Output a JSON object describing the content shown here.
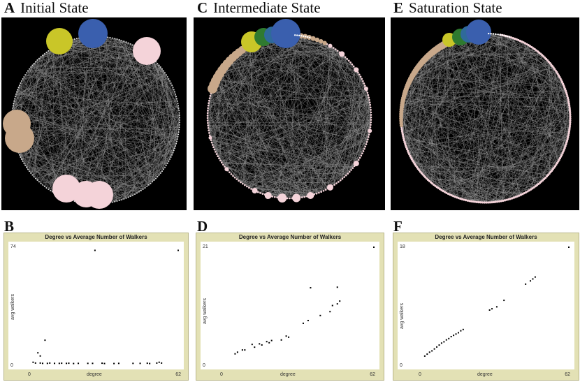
{
  "panels": [
    {
      "letter": "A",
      "title": "Initial State"
    },
    {
      "letter": "C",
      "title": "Intermediate State"
    },
    {
      "letter": "E",
      "title": "Saturation State"
    }
  ],
  "plot_letters": [
    "B",
    "D",
    "F"
  ],
  "colors": {
    "blue": "#3a5fae",
    "yellow": "#c9c628",
    "green": "#2f7a2f",
    "tan": "#c8a88a",
    "pink": "#f4d3d9",
    "edge": "#9a9a9a"
  },
  "chart_data": [
    {
      "type": "scatter",
      "title": "Degree vs Average Number of Walkers",
      "xlabel": "degree",
      "ylabel": "avg walkers",
      "xlim": [
        0,
        62
      ],
      "ylim": [
        0,
        74
      ],
      "xticks": [
        "0",
        "62"
      ],
      "yticks": [
        "0",
        "74"
      ],
      "points": [
        [
          27,
          72
        ],
        [
          62,
          72
        ],
        [
          1,
          1
        ],
        [
          3,
          7
        ],
        [
          4,
          5
        ],
        [
          6,
          15
        ],
        [
          2,
          0.5
        ],
        [
          4,
          0.5
        ],
        [
          7,
          0.3
        ],
        [
          8,
          0.5
        ],
        [
          10,
          0.3
        ],
        [
          12,
          0.3
        ],
        [
          13,
          0.4
        ],
        [
          15,
          0.3
        ],
        [
          16,
          0.4
        ],
        [
          18,
          0.2
        ],
        [
          20,
          0.3
        ],
        [
          24,
          0.3
        ],
        [
          26,
          0.3
        ],
        [
          30,
          0.4
        ],
        [
          31,
          0.2
        ],
        [
          35,
          0.2
        ],
        [
          37,
          0.3
        ],
        [
          43,
          0.3
        ],
        [
          46,
          0.3
        ],
        [
          49,
          0.4
        ],
        [
          50,
          0.2
        ],
        [
          53,
          0.5
        ],
        [
          54,
          1
        ],
        [
          55,
          0.5
        ],
        [
          5,
          0.3
        ]
      ]
    },
    {
      "type": "scatter",
      "title": "Degree vs Average Number of Walkers",
      "xlabel": "degree",
      "ylabel": "avg walkers",
      "xlim": [
        0,
        62
      ],
      "ylim": [
        0,
        21
      ],
      "xticks": [
        "0",
        "62"
      ],
      "yticks": [
        "0",
        "21"
      ],
      "points": [
        [
          5,
          1.8
        ],
        [
          6,
          2.1
        ],
        [
          8,
          2.5
        ],
        [
          9,
          2.5
        ],
        [
          12,
          3.5
        ],
        [
          13,
          3.0
        ],
        [
          15,
          3.6
        ],
        [
          16,
          3.4
        ],
        [
          18,
          4.0
        ],
        [
          19,
          3.8
        ],
        [
          20,
          4.2
        ],
        [
          24,
          4.3
        ],
        [
          26,
          5.0
        ],
        [
          27,
          4.8
        ],
        [
          33,
          7.3
        ],
        [
          35,
          7.8
        ],
        [
          40,
          8.7
        ],
        [
          44,
          9.4
        ],
        [
          45,
          10.5
        ],
        [
          47,
          10.8
        ],
        [
          48,
          11.3
        ],
        [
          47,
          13.8
        ],
        [
          36,
          13.7
        ],
        [
          62,
          21
        ]
      ]
    },
    {
      "type": "scatter",
      "title": "Degree vs Average Number of Walkers",
      "xlabel": "degree",
      "ylabel": "avg walkers",
      "xlim": [
        0,
        62
      ],
      "ylim": [
        0,
        18
      ],
      "xticks": [
        "0",
        "62"
      ],
      "yticks": [
        "0",
        "18"
      ],
      "points": [
        [
          2,
          1.2
        ],
        [
          3,
          1.5
        ],
        [
          4,
          1.8
        ],
        [
          5,
          2.0
        ],
        [
          6,
          2.3
        ],
        [
          7,
          2.6
        ],
        [
          8,
          2.9
        ],
        [
          9,
          3.2
        ],
        [
          10,
          3.4
        ],
        [
          11,
          3.7
        ],
        [
          12,
          3.9
        ],
        [
          13,
          4.2
        ],
        [
          14,
          4.4
        ],
        [
          15,
          4.6
        ],
        [
          16,
          4.8
        ],
        [
          17,
          5.1
        ],
        [
          18,
          5.3
        ],
        [
          29,
          8.3
        ],
        [
          30,
          8.5
        ],
        [
          32,
          8.8
        ],
        [
          35,
          9.8
        ],
        [
          44,
          12.3
        ],
        [
          46,
          12.8
        ],
        [
          47,
          13.1
        ],
        [
          48,
          13.4
        ],
        [
          62,
          18
        ]
      ]
    }
  ]
}
